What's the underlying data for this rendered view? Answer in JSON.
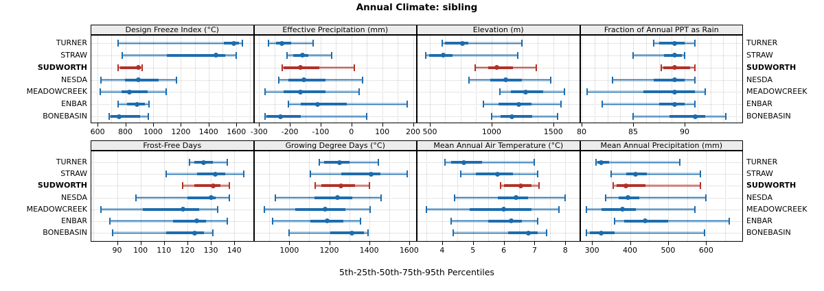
{
  "title": "Annual Climate: sibling",
  "caption": "5th-25th-50th-75th-95th Percentiles",
  "colors": {
    "blue": "#1c6cae",
    "red": "#b23127",
    "band_alpha": 0.32,
    "grid": "#c9c9c9",
    "strip_bg": "#ececec",
    "border": "#000000"
  },
  "chart_data": {
    "type": "interval-dotplot-trellis",
    "rows": 2,
    "cols": 4,
    "percentiles": [
      "5th",
      "25th",
      "50th",
      "75th",
      "95th"
    ],
    "sites": [
      "TURNER",
      "STRAW",
      "SUDWORTH",
      "NESDA",
      "MEADOWCREEK",
      "ENBAR",
      "BONEBASIN"
    ],
    "highlight": "SUDWORTH",
    "panels": [
      {
        "title": "Design Freeze Index (°C)",
        "xlim": [
          555,
          1720
        ],
        "ticks": [
          600,
          800,
          1000,
          1200,
          1400,
          1600
        ],
        "grid_step": 100,
        "series": [
          {
            "name": "TURNER",
            "values": [
              750,
              1510,
              1580,
              1620,
              1645
            ]
          },
          {
            "name": "STRAW",
            "values": [
              780,
              1100,
              1455,
              1520,
              1600
            ]
          },
          {
            "name": "SUDWORTH",
            "values": [
              750,
              765,
              895,
              910,
              920
            ]
          },
          {
            "name": "NESDA",
            "values": [
              625,
              795,
              895,
              1040,
              1170
            ]
          },
          {
            "name": "MEADOWCREEK",
            "values": [
              620,
              775,
              830,
              960,
              1095
            ]
          },
          {
            "name": "ENBAR",
            "values": [
              750,
              810,
              885,
              940,
              970
            ]
          },
          {
            "name": "BONEBASIN",
            "values": [
              685,
              695,
              755,
              905,
              965
            ]
          }
        ]
      },
      {
        "title": "Effective Precipitation (mm)",
        "xlim": [
          -315,
          210
        ],
        "ticks": [
          -300,
          -200,
          -100,
          0,
          100,
          200
        ],
        "grid_step": 50,
        "series": [
          {
            "name": "TURNER",
            "values": [
              -270,
              -245,
              -225,
              -195,
              -125
            ]
          },
          {
            "name": "STRAW",
            "values": [
              -210,
              -190,
              -160,
              -140,
              -65
            ]
          },
          {
            "name": "SUDWORTH",
            "values": [
              -225,
              -220,
              -165,
              -105,
              10
            ]
          },
          {
            "name": "NESDA",
            "values": [
              -235,
              -205,
              -155,
              -85,
              35
            ]
          },
          {
            "name": "MEADOWCREEK",
            "values": [
              -280,
              -220,
              -165,
              -85,
              25
            ]
          },
          {
            "name": "ENBAR",
            "values": [
              -205,
              -165,
              -110,
              -15,
              180
            ]
          },
          {
            "name": "BONEBASIN",
            "values": [
              -280,
              -275,
              -230,
              -165,
              50
            ]
          }
        ]
      },
      {
        "title": "Elevation (m)",
        "xlim": [
          400,
          1710
        ],
        "ticks": [
          500,
          1000,
          1500
        ],
        "grid_step": 125,
        "series": [
          {
            "name": "TURNER",
            "values": [
              600,
              620,
              765,
              810,
              1245
            ]
          },
          {
            "name": "STRAW",
            "values": [
              465,
              495,
              610,
              685,
              1210
            ]
          },
          {
            "name": "SUDWORTH",
            "values": [
              865,
              975,
              1040,
              1175,
              1360
            ]
          },
          {
            "name": "NESDA",
            "values": [
              815,
              990,
              1115,
              1245,
              1480
            ]
          },
          {
            "name": "MEADOWCREEK",
            "values": [
              1065,
              1155,
              1275,
              1420,
              1590
            ]
          },
          {
            "name": "ENBAR",
            "values": [
              935,
              1055,
              1220,
              1325,
              1560
            ]
          },
          {
            "name": "BONEBASIN",
            "values": [
              1000,
              1075,
              1165,
              1330,
              1535
            ]
          }
        ]
      },
      {
        "title": "Fraction of Annual PPT as Rain",
        "xlim": [
          79.9,
          95.6
        ],
        "ticks": [
          80,
          85,
          90
        ],
        "grid_step": 1.25,
        "series": [
          {
            "name": "TURNER",
            "values": [
              87,
              87.5,
              89,
              90,
              91
            ]
          },
          {
            "name": "STRAW",
            "values": [
              85,
              88,
              89,
              89.7,
              90
            ]
          },
          {
            "name": "SUDWORTH",
            "values": [
              87.7,
              87.9,
              89,
              90.5,
              91
            ]
          },
          {
            "name": "NESDA",
            "values": [
              83,
              87,
              89,
              90,
              91
            ]
          },
          {
            "name": "MEADOWCREEK",
            "values": [
              80.5,
              86,
              89,
              91,
              92
            ]
          },
          {
            "name": "ENBAR",
            "values": [
              82,
              87.5,
              89,
              90,
              91
            ]
          },
          {
            "name": "BONEBASIN",
            "values": [
              85,
              88.5,
              91,
              92,
              94
            ]
          }
        ]
      },
      {
        "title": "Frost-Free Days",
        "xlim": [
          79,
          148
        ],
        "ticks": [
          90,
          100,
          110,
          120,
          130,
          140
        ],
        "grid_step": 10,
        "series": [
          {
            "name": "TURNER",
            "values": [
              121,
              123,
              127,
              131,
              137
            ]
          },
          {
            "name": "STRAW",
            "values": [
              111,
              124,
              132,
              136,
              144
            ]
          },
          {
            "name": "SUDWORTH",
            "values": [
              118,
              123,
              131,
              134,
              138
            ]
          },
          {
            "name": "NESDA",
            "values": [
              98,
              120,
              130,
              132,
              138
            ]
          },
          {
            "name": "MEADOWCREEK",
            "values": [
              83,
              101,
              118,
              125,
              133
            ]
          },
          {
            "name": "ENBAR",
            "values": [
              87,
              114,
              124,
              128,
              137
            ]
          },
          {
            "name": "BONEBASIN",
            "values": [
              88,
              111,
              123,
              127,
              131
            ]
          }
        ]
      },
      {
        "title": "Growing Degree Days (°C)",
        "xlim": [
          825,
          1635
        ],
        "ticks": [
          1000,
          1200,
          1400,
          1600
        ],
        "grid_step": 100,
        "series": [
          {
            "name": "TURNER",
            "values": [
              1150,
              1175,
              1250,
              1300,
              1445
            ]
          },
          {
            "name": "STRAW",
            "values": [
              1105,
              1260,
              1410,
              1455,
              1590
            ]
          },
          {
            "name": "SUDWORTH",
            "values": [
              1130,
              1160,
              1260,
              1330,
              1400
            ]
          },
          {
            "name": "NESDA",
            "values": [
              930,
              1125,
              1240,
              1315,
              1460
            ]
          },
          {
            "name": "MEADOWCREEK",
            "values": [
              875,
              1030,
              1180,
              1280,
              1405
            ]
          },
          {
            "name": "ENBAR",
            "values": [
              915,
              1105,
              1190,
              1270,
              1355
            ]
          },
          {
            "name": "BONEBASIN",
            "values": [
              1000,
              1205,
              1315,
              1375,
              1395
            ]
          }
        ]
      },
      {
        "title": "Mean Annual Air Temperature (°C)",
        "xlim": [
          3.2,
          8.45
        ],
        "ticks": [
          4,
          5,
          6,
          7,
          8
        ],
        "grid_step": 0.5,
        "series": [
          {
            "name": "TURNER",
            "values": [
              4.1,
              4.3,
              4.7,
              5.3,
              7.0
            ]
          },
          {
            "name": "STRAW",
            "values": [
              4.6,
              5.1,
              5.8,
              6.3,
              7.1
            ]
          },
          {
            "name": "SUDWORTH",
            "values": [
              5.9,
              6.0,
              6.55,
              6.9,
              7.15
            ]
          },
          {
            "name": "NESDA",
            "values": [
              4.4,
              5.8,
              6.4,
              6.8,
              8.0
            ]
          },
          {
            "name": "MEADOWCREEK",
            "values": [
              3.5,
              4.9,
              6.0,
              6.9,
              7.8
            ]
          },
          {
            "name": "ENBAR",
            "values": [
              4.3,
              5.5,
              6.25,
              6.6,
              7.1
            ]
          },
          {
            "name": "BONEBASIN",
            "values": [
              4.35,
              6.15,
              6.8,
              7.1,
              7.4
            ]
          }
        ]
      },
      {
        "title": "Mean Annual Precipitation (mm)",
        "xlim": [
          270,
          695
        ],
        "ticks": [
          300,
          400,
          500,
          600
        ],
        "grid_step": 50,
        "series": [
          {
            "name": "TURNER",
            "values": [
              310,
              315,
              325,
              345,
              530
            ]
          },
          {
            "name": "STRAW",
            "values": [
              350,
              390,
              415,
              445,
              585
            ]
          },
          {
            "name": "SUDWORTH",
            "values": [
              355,
              365,
              390,
              440,
              585
            ]
          },
          {
            "name": "NESDA",
            "values": [
              335,
              370,
              395,
              425,
              600
            ]
          },
          {
            "name": "MEADOWCREEK",
            "values": [
              285,
              325,
              380,
              415,
              570
            ]
          },
          {
            "name": "ENBAR",
            "values": [
              360,
              385,
              440,
              500,
              660
            ]
          },
          {
            "name": "BONEBASIN",
            "values": [
              285,
              295,
              325,
              360,
              595
            ]
          }
        ]
      }
    ]
  }
}
